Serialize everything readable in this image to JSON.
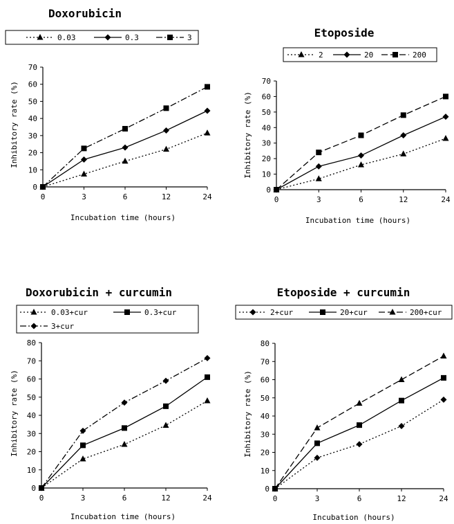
{
  "chart_data": [
    {
      "type": "line",
      "title": "Doxorubicin",
      "xlabel": "Incubation time (hours)",
      "ylabel": "Inhibitory rate (%)",
      "categories": [
        "0",
        "3",
        "6",
        "12",
        "24"
      ],
      "yticks": [
        "0",
        "10",
        "20",
        "30",
        "40",
        "50",
        "60",
        "70"
      ],
      "ylim": [
        0,
        70
      ],
      "legend_position": "top",
      "series": [
        {
          "name": "0.03",
          "values": [
            0,
            7.5,
            15,
            22,
            31.5
          ],
          "marker": "triangle",
          "dash": "dotted"
        },
        {
          "name": "0.3",
          "values": [
            0,
            16,
            23,
            33,
            44.5
          ],
          "marker": "diamond",
          "dash": "solid"
        },
        {
          "name": "3",
          "values": [
            0,
            22.5,
            34,
            46,
            58.5
          ],
          "marker": "square",
          "dash": "dashdot"
        }
      ]
    },
    {
      "type": "line",
      "title": "Etoposide",
      "xlabel": "Incubation time (hours)",
      "ylabel": "Inhibitory rate (%)",
      "categories": [
        "0",
        "3",
        "6",
        "12",
        "24"
      ],
      "yticks": [
        "0",
        "10",
        "20",
        "30",
        "40",
        "50",
        "60",
        "70"
      ],
      "ylim": [
        0,
        70
      ],
      "legend_position": "top",
      "series": [
        {
          "name": "2",
          "values": [
            0,
            7,
            16,
            23,
            33
          ],
          "marker": "triangle",
          "dash": "dotted"
        },
        {
          "name": "20",
          "values": [
            0,
            15,
            22,
            35,
            47
          ],
          "marker": "diamond",
          "dash": "solid"
        },
        {
          "name": "200",
          "values": [
            0,
            24,
            35,
            48,
            60
          ],
          "marker": "square",
          "dash": "dashed"
        }
      ]
    },
    {
      "type": "line",
      "title": "Doxorubicin + curcumin",
      "xlabel": "Incubation time (hours)",
      "ylabel": "Inhibitory rate (%)",
      "categories": [
        "0",
        "3",
        "6",
        "12",
        "24"
      ],
      "yticks": [
        "0",
        "10",
        "20",
        "30",
        "40",
        "50",
        "60",
        "70",
        "80"
      ],
      "ylim": [
        0,
        80
      ],
      "legend_position": "top",
      "series": [
        {
          "name": "0.03+cur",
          "values": [
            0,
            16,
            24,
            34.5,
            48
          ],
          "marker": "triangle",
          "dash": "dotted"
        },
        {
          "name": "0.3+cur",
          "values": [
            0,
            23.5,
            33,
            45,
            61
          ],
          "marker": "square",
          "dash": "solid"
        },
        {
          "name": "3+cur",
          "values": [
            0,
            31.5,
            47,
            59,
            71.5
          ],
          "marker": "diamond",
          "dash": "dashdot"
        }
      ]
    },
    {
      "type": "line",
      "title": "Etoposide + curcumin",
      "xlabel": "Incubation (hours)",
      "ylabel": "Inhibitory rate (%)",
      "categories": [
        "0",
        "3",
        "6",
        "12",
        "24"
      ],
      "yticks": [
        "0",
        "10",
        "20",
        "30",
        "40",
        "50",
        "60",
        "70",
        "80"
      ],
      "ylim": [
        0,
        80
      ],
      "legend_position": "top",
      "series": [
        {
          "name": "2+cur",
          "values": [
            0,
            17,
            24.5,
            34.5,
            49
          ],
          "marker": "diamond",
          "dash": "dotted"
        },
        {
          "name": "20+cur",
          "values": [
            0,
            25,
            35,
            48.5,
            61
          ],
          "marker": "square",
          "dash": "solid"
        },
        {
          "name": "200+cur",
          "values": [
            0,
            33.5,
            47,
            60,
            73
          ],
          "marker": "triangle",
          "dash": "dashed"
        }
      ]
    }
  ]
}
